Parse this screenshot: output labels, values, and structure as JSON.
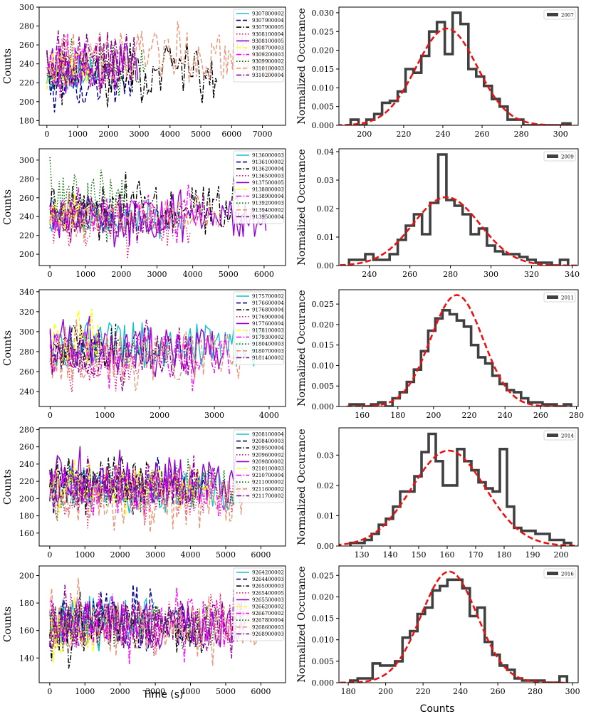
{
  "figure": {
    "left_xlabel": "Time (s)",
    "right_xlabel": "Counts"
  },
  "chart_data": [
    {
      "type": "line",
      "ylabel": "Counts",
      "xlabel": "",
      "xlim": [
        -250,
        7750
      ],
      "ylim": [
        175,
        300
      ],
      "xticks": [
        0,
        1000,
        2000,
        3000,
        4000,
        5000,
        6000,
        7000
      ],
      "yticks": [
        180,
        200,
        220,
        240,
        260,
        280,
        300
      ],
      "series": [
        {
          "name": "9307800002",
          "color": "#17becf",
          "style": "solid",
          "x_end": 1700,
          "y_min": 195,
          "y_max": 265
        },
        {
          "name": "9307900004",
          "color": "#00008b",
          "style": "dash",
          "x_end": 2800,
          "y_min": 182,
          "y_max": 262
        },
        {
          "name": "9307900005",
          "color": "#000000",
          "style": "dashdot",
          "x_end": 5600,
          "y_min": 193,
          "y_max": 270
        },
        {
          "name": "9308100004",
          "color": "#e0116f",
          "style": "dot",
          "x_end": 2200,
          "y_min": 205,
          "y_max": 262
        },
        {
          "name": "9308100005",
          "color": "#9400d3",
          "style": "solid",
          "x_end": 3000,
          "y_min": 198,
          "y_max": 280
        },
        {
          "name": "9308700003",
          "color": "#ffff00",
          "style": "dash",
          "x_end": 1500,
          "y_min": 205,
          "y_max": 265
        },
        {
          "name": "9309200003",
          "color": "#ff00ff",
          "style": "dashdot",
          "x_end": 2600,
          "y_min": 200,
          "y_max": 272
        },
        {
          "name": "9309900002",
          "color": "#006400",
          "style": "dot",
          "x_end": 3200,
          "y_min": 205,
          "y_max": 268
        },
        {
          "name": "9310100003",
          "color": "#e9967a",
          "style": "dash",
          "x_end": 7400,
          "y_min": 200,
          "y_max": 295
        },
        {
          "name": "9310200004",
          "color": "#8b008b",
          "style": "dashdot",
          "x_end": 2900,
          "y_min": 195,
          "y_max": 296
        }
      ]
    },
    {
      "type": "bar",
      "ylabel": "Normalized Occurance",
      "xlabel": "",
      "legend": "2007",
      "xlim": [
        187,
        309
      ],
      "ylim": [
        0,
        0.0315
      ],
      "xticks": [
        200,
        220,
        240,
        260,
        280,
        300
      ],
      "yticks": [
        0,
        0.005,
        0.01,
        0.015,
        0.02,
        0.025,
        0.03
      ],
      "bin_edges": [
        193,
        197,
        201,
        205,
        209,
        213,
        217,
        221,
        225,
        229,
        233,
        237,
        241,
        245,
        249,
        253,
        257,
        261,
        265,
        269,
        273,
        277,
        281,
        285,
        289,
        293,
        297,
        301,
        305
      ],
      "values": [
        0.0015,
        0,
        0.0015,
        0.003,
        0.006,
        0.0065,
        0.009,
        0.015,
        0.014,
        0.0185,
        0.025,
        0.0275,
        0.019,
        0.03,
        0.027,
        0.015,
        0.013,
        0.0105,
        0.007,
        0.005,
        0.0015,
        0.0015,
        0,
        0,
        0,
        0,
        0,
        0.0005
      ],
      "fit": {
        "mean": 242,
        "sigma": 15.5,
        "peak": 0.0258
      }
    },
    {
      "type": "line",
      "ylabel": "Counts",
      "xlabel": "",
      "xlim": [
        -300,
        6600
      ],
      "ylim": [
        188,
        312
      ],
      "xticks": [
        0,
        1000,
        2000,
        3000,
        4000,
        5000,
        6000
      ],
      "yticks": [
        200,
        220,
        240,
        260,
        280,
        300
      ],
      "series": [
        {
          "name": "9136000003",
          "color": "#17becf",
          "style": "solid",
          "x_end": 3700,
          "y_min": 215,
          "y_max": 260
        },
        {
          "name": "9136100002",
          "color": "#00008b",
          "style": "dash",
          "x_end": 1700,
          "y_min": 208,
          "y_max": 275
        },
        {
          "name": "9136200004",
          "color": "#000000",
          "style": "dashdot",
          "x_end": 5500,
          "y_min": 212,
          "y_max": 288
        },
        {
          "name": "9136500003",
          "color": "#e0116f",
          "style": "dot",
          "x_end": 3950,
          "y_min": 195,
          "y_max": 262
        },
        {
          "name": "9137500005",
          "color": "#9400d3",
          "style": "solid",
          "x_end": 6100,
          "y_min": 205,
          "y_max": 270
        },
        {
          "name": "9138800003",
          "color": "#ffff00",
          "style": "dash",
          "x_end": 1300,
          "y_min": 212,
          "y_max": 270
        },
        {
          "name": "9138900004",
          "color": "#ff00ff",
          "style": "dashdot",
          "x_end": 4300,
          "y_min": 210,
          "y_max": 275
        },
        {
          "name": "9139200003",
          "color": "#006400",
          "style": "dot",
          "x_end": 2200,
          "y_min": 208,
          "y_max": 304
        },
        {
          "name": "9139400002",
          "color": "#e9967a",
          "style": "dash",
          "x_end": 4800,
          "y_min": 212,
          "y_max": 268
        },
        {
          "name": "9139500004",
          "color": "#8b008b",
          "style": "dashdot",
          "x_end": 3500,
          "y_min": 210,
          "y_max": 265
        }
      ]
    },
    {
      "type": "bar",
      "ylabel": "Normalized Occurance",
      "xlabel": "",
      "legend": "2009",
      "xlim": [
        225,
        343
      ],
      "ylim": [
        0,
        0.041
      ],
      "xticks": [
        240,
        260,
        280,
        300,
        320,
        340
      ],
      "yticks": [
        0,
        0.01,
        0.02,
        0.03,
        0.04
      ],
      "bin_edges": [
        230,
        234,
        238,
        242,
        246,
        250,
        254,
        258,
        262,
        266,
        270,
        274,
        278,
        282,
        286,
        290,
        294,
        298,
        302,
        306,
        310,
        314,
        318,
        322,
        326,
        330,
        334,
        338
      ],
      "values": [
        0.002,
        0.002,
        0.004,
        0.002,
        0.002,
        0.004,
        0.009,
        0.014,
        0.018,
        0.011,
        0.022,
        0.039,
        0.023,
        0.021,
        0.018,
        0.011,
        0.013,
        0.007,
        0.005,
        0.004,
        0.004,
        0.003,
        0.002,
        0.001,
        0.001,
        0,
        0.002
      ],
      "fit": {
        "mean": 278,
        "sigma": 16.5,
        "peak": 0.024
      }
    },
    {
      "type": "line",
      "ylabel": "Counts",
      "xlabel": "",
      "xlim": [
        -200,
        4300
      ],
      "ylim": [
        225,
        342
      ],
      "xticks": [
        0,
        1000,
        2000,
        3000,
        4000
      ],
      "yticks": [
        240,
        260,
        280,
        300,
        320,
        340
      ],
      "series": [
        {
          "name": "9175700002",
          "color": "#17becf",
          "style": "solid",
          "x_end": 3900,
          "y_min": 248,
          "y_max": 325
        },
        {
          "name": "9176600004",
          "color": "#00008b",
          "style": "dash",
          "x_end": 900,
          "y_min": 250,
          "y_max": 310
        },
        {
          "name": "9176800004",
          "color": "#000000",
          "style": "dashdot",
          "x_end": 1200,
          "y_min": 245,
          "y_max": 326
        },
        {
          "name": "9176900004",
          "color": "#e0116f",
          "style": "dot",
          "x_end": 1600,
          "y_min": 235,
          "y_max": 300
        },
        {
          "name": "9177600004",
          "color": "#9400d3",
          "style": "solid",
          "x_end": 3200,
          "y_min": 245,
          "y_max": 320
        },
        {
          "name": "9178100003",
          "color": "#ffff00",
          "style": "dash",
          "x_end": 900,
          "y_min": 245,
          "y_max": 326
        },
        {
          "name": "9179300002",
          "color": "#ff00ff",
          "style": "dashdot",
          "x_end": 3300,
          "y_min": 240,
          "y_max": 315
        },
        {
          "name": "9180400003",
          "color": "#006400",
          "style": "dot",
          "x_end": 2200,
          "y_min": 255,
          "y_max": 305
        },
        {
          "name": "9180700003",
          "color": "#e9967a",
          "style": "dash",
          "x_end": 3500,
          "y_min": 232,
          "y_max": 318
        },
        {
          "name": "9181400002",
          "color": "#8b008b",
          "style": "dashdot",
          "x_end": 2600,
          "y_min": 240,
          "y_max": 312
        }
      ]
    },
    {
      "type": "bar",
      "ylabel": "Normalized Occurance",
      "xlabel": "",
      "legend": "2011",
      "xlim": [
        147,
        281
      ],
      "ylim": [
        0,
        0.0285
      ],
      "xticks": [
        160,
        180,
        200,
        220,
        240,
        260,
        280
      ],
      "yticks": [
        0,
        0.005,
        0.01,
        0.015,
        0.02,
        0.025
      ],
      "bin_edges": [
        153,
        157,
        161,
        165,
        169,
        173,
        177,
        181,
        185,
        189,
        193,
        197,
        201,
        205,
        209,
        213,
        217,
        221,
        225,
        229,
        233,
        237,
        241,
        245,
        249,
        253,
        257,
        261,
        265,
        269,
        273,
        277
      ],
      "values": [
        0.0005,
        0.0005,
        0,
        0.0005,
        0.001,
        0,
        0.002,
        0.0035,
        0.006,
        0.009,
        0.0135,
        0.0185,
        0.0215,
        0.0235,
        0.0225,
        0.021,
        0.0195,
        0.015,
        0.012,
        0.0105,
        0.0075,
        0.0055,
        0.004,
        0.0035,
        0.002,
        0.001,
        0.001,
        0.0005,
        0.0005,
        0,
        0.0005
      ],
      "fit": {
        "mean": 213,
        "sigma": 14.7,
        "peak": 0.0272
      }
    },
    {
      "type": "line",
      "ylabel": "Counts",
      "xlabel": "",
      "xlim": [
        -300,
        6700
      ],
      "ylim": [
        145,
        282
      ],
      "xticks": [
        0,
        1000,
        2000,
        3000,
        4000,
        5000,
        6000
      ],
      "yticks": [
        160,
        180,
        200,
        220,
        240,
        260,
        280
      ],
      "series": [
        {
          "name": "9208100004",
          "color": "#17becf",
          "style": "solid",
          "x_end": 5400,
          "y_min": 175,
          "y_max": 245
        },
        {
          "name": "9208400003",
          "color": "#00008b",
          "style": "dash",
          "x_end": 4700,
          "y_min": 180,
          "y_max": 250
        },
        {
          "name": "9209500004",
          "color": "#000000",
          "style": "dashdot",
          "x_end": 2900,
          "y_min": 180,
          "y_max": 268
        },
        {
          "name": "9209600002",
          "color": "#e0116f",
          "style": "dot",
          "x_end": 5900,
          "y_min": 160,
          "y_max": 250
        },
        {
          "name": "9209800002",
          "color": "#9400d3",
          "style": "solid",
          "x_end": 5300,
          "y_min": 175,
          "y_max": 270
        },
        {
          "name": "9210100003",
          "color": "#ffff00",
          "style": "dash",
          "x_end": 4600,
          "y_min": 180,
          "y_max": 248
        },
        {
          "name": "9210700004",
          "color": "#ff00ff",
          "style": "dashdot",
          "x_end": 5100,
          "y_min": 175,
          "y_max": 255
        },
        {
          "name": "9211000002",
          "color": "#006400",
          "style": "dot",
          "x_end": 5400,
          "y_min": 172,
          "y_max": 250
        },
        {
          "name": "9211600002",
          "color": "#e9967a",
          "style": "dash",
          "x_end": 5500,
          "y_min": 155,
          "y_max": 245
        },
        {
          "name": "9211700002",
          "color": "#8b008b",
          "style": "dashdot",
          "x_end": 4200,
          "y_min": 178,
          "y_max": 250
        }
      ]
    },
    {
      "type": "bar",
      "ylabel": "Normalized Occurance",
      "xlabel": "",
      "legend": "2014",
      "xlim": [
        122,
        206
      ],
      "ylim": [
        0,
        0.039
      ],
      "xticks": [
        130,
        140,
        150,
        160,
        170,
        180,
        190,
        200
      ],
      "yticks": [
        0,
        0.01,
        0.02,
        0.03
      ],
      "bin_edges": [
        126,
        128.5,
        131,
        133.5,
        136,
        138.5,
        141,
        143.5,
        146,
        148.5,
        151,
        153.5,
        156,
        158.5,
        161,
        163.5,
        166,
        168.5,
        171,
        173.5,
        176,
        178.5,
        181,
        183.5,
        186,
        188.5,
        191,
        193.5,
        196,
        198.5,
        201,
        203.5
      ],
      "values": [
        0.001,
        0.001,
        0.002,
        0.004,
        0.007,
        0.009,
        0.013,
        0.018,
        0.018,
        0.023,
        0.031,
        0.037,
        0.028,
        0.02,
        0.02,
        0.032,
        0.028,
        0.025,
        0.021,
        0.019,
        0.018,
        0.032,
        0.013,
        0.006,
        0.005,
        0.005,
        0.004,
        0.004,
        0.002,
        0.002,
        0.001
      ],
      "fit": {
        "mean": 160.5,
        "sigma": 13,
        "peak": 0.0315
      }
    },
    {
      "type": "line",
      "ylabel": "Counts",
      "xlabel": "Time (s)",
      "xlim": [
        -300,
        6700
      ],
      "ylim": [
        122,
        207
      ],
      "xticks": [
        0,
        1000,
        2000,
        3000,
        4000,
        5000,
        6000
      ],
      "yticks": [
        140,
        160,
        180,
        200
      ],
      "series": [
        {
          "name": "9264200002",
          "color": "#17becf",
          "style": "solid",
          "x_end": 3000,
          "y_min": 138,
          "y_max": 199
        },
        {
          "name": "9264400003",
          "color": "#00008b",
          "style": "dash",
          "x_end": 4000,
          "y_min": 135,
          "y_max": 195
        },
        {
          "name": "9265000003",
          "color": "#000000",
          "style": "dashdot",
          "x_end": 4500,
          "y_min": 132,
          "y_max": 190
        },
        {
          "name": "9265400005",
          "color": "#e0116f",
          "style": "dot",
          "x_end": 5300,
          "y_min": 140,
          "y_max": 190
        },
        {
          "name": "9265500003",
          "color": "#9400d3",
          "style": "solid",
          "x_end": 5600,
          "y_min": 135,
          "y_max": 192
        },
        {
          "name": "9266200002",
          "color": "#ffff00",
          "style": "dash",
          "x_end": 1500,
          "y_min": 125,
          "y_max": 185
        },
        {
          "name": "9266700002",
          "color": "#ff00ff",
          "style": "dashdot",
          "x_end": 5300,
          "y_min": 135,
          "y_max": 196
        },
        {
          "name": "9267800004",
          "color": "#006400",
          "style": "dot",
          "x_end": 4900,
          "y_min": 135,
          "y_max": 190
        },
        {
          "name": "9268600003",
          "color": "#e9967a",
          "style": "dash",
          "x_end": 6300,
          "y_min": 130,
          "y_max": 200
        },
        {
          "name": "9268900003",
          "color": "#8b008b",
          "style": "dashdot",
          "x_end": 5500,
          "y_min": 135,
          "y_max": 195
        }
      ]
    },
    {
      "type": "bar",
      "ylabel": "Normalized Occurance",
      "xlabel": "Counts",
      "legend": "2016",
      "xlim": [
        175,
        303
      ],
      "ylim": [
        0,
        0.0272
      ],
      "xticks": [
        180,
        200,
        220,
        240,
        260,
        280,
        300
      ],
      "yticks": [
        0,
        0.005,
        0.01,
        0.015,
        0.02,
        0.025
      ],
      "bin_edges": [
        181,
        185,
        189,
        193,
        197,
        201,
        205,
        209,
        213,
        217,
        221,
        225,
        229,
        233,
        237,
        241,
        245,
        249,
        253,
        257,
        261,
        265,
        269,
        273,
        277,
        281,
        285,
        289,
        293,
        297
      ],
      "values": [
        0.0005,
        0.001,
        0.001,
        0.0045,
        0.004,
        0.004,
        0.005,
        0.0105,
        0.012,
        0.016,
        0.0175,
        0.0215,
        0.0225,
        0.024,
        0.024,
        0.022,
        0.0155,
        0.0175,
        0.0095,
        0.0065,
        0.004,
        0.003,
        0.001,
        0.0005,
        0.0005,
        0.0005,
        0,
        0,
        0.0015
      ],
      "fit": {
        "mean": 234,
        "sigma": 15,
        "peak": 0.0259
      }
    }
  ]
}
